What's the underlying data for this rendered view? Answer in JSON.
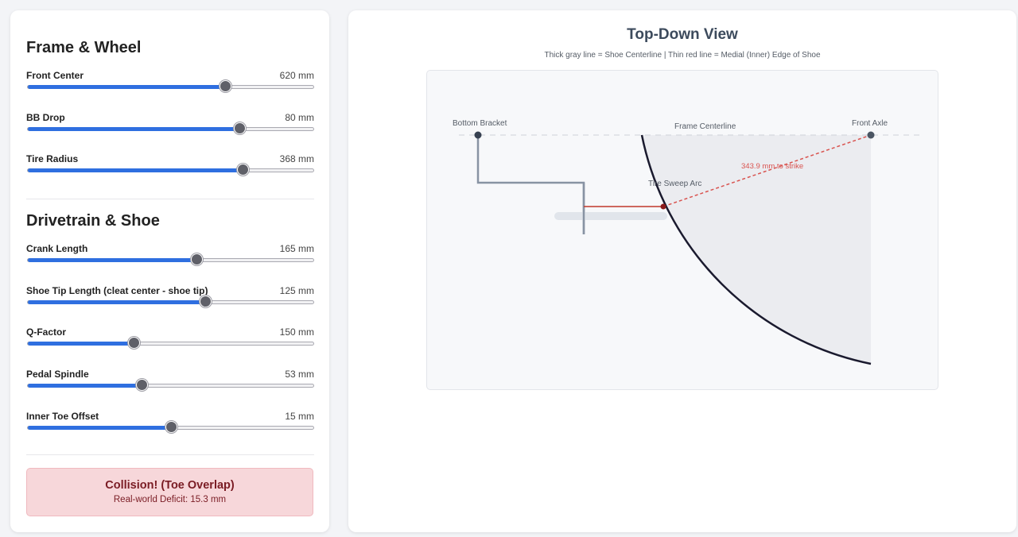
{
  "frame_section": {
    "title": "Frame & Wheel",
    "controls": [
      {
        "label": "Front Center",
        "value": "620 mm",
        "fraction": 0.69
      },
      {
        "label": "BB Drop",
        "value": "80 mm",
        "fraction": 0.74
      },
      {
        "label": "Tire Radius",
        "value": "368 mm",
        "fraction": 0.75
      }
    ]
  },
  "drivetrain_section": {
    "title": "Drivetrain & Shoe",
    "controls": [
      {
        "label": "Crank Length",
        "value": "165 mm",
        "fraction": 0.59
      },
      {
        "label": "Shoe Tip Length (cleat center - shoe tip)",
        "value": "125 mm",
        "fraction": 0.62
      },
      {
        "label": "Q-Factor",
        "value": "150 mm",
        "fraction": 0.37
      },
      {
        "label": "Pedal Spindle",
        "value": "53 mm",
        "fraction": 0.4
      },
      {
        "label": "Inner Toe Offset",
        "value": "15 mm",
        "fraction": 0.5
      }
    ]
  },
  "status": {
    "title": "Collision! (Toe Overlap)",
    "detail": "Real-world Deficit: 15.3 mm",
    "color": "#7a1c24",
    "background": "#f7d7da"
  },
  "view": {
    "title": "Top-Down View",
    "subtitle": "Thick gray line = Shoe Centerline | Thin red line = Medial (Inner) Edge of Shoe",
    "labels": {
      "bottom_bracket": "Bottom Bracket",
      "frame_centerline": "Frame Centerline",
      "front_axle": "Front Axle",
      "tire_sweep_arc": "Tire Sweep Arc",
      "strike_distance": "343.9 mm to strike"
    },
    "colors": {
      "accent": "#2f6fe0",
      "collision": "#d9534f",
      "arc": "#1a1a2e"
    }
  }
}
